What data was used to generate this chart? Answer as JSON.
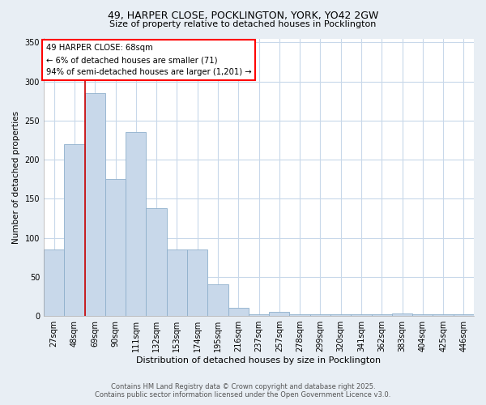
{
  "title_line1": "49, HARPER CLOSE, POCKLINGTON, YORK, YO42 2GW",
  "title_line2": "Size of property relative to detached houses in Pocklington",
  "xlabel": "Distribution of detached houses by size in Pocklington",
  "ylabel": "Number of detached properties",
  "bar_labels": [
    "27sqm",
    "48sqm",
    "69sqm",
    "90sqm",
    "111sqm",
    "132sqm",
    "153sqm",
    "174sqm",
    "195sqm",
    "216sqm",
    "237sqm",
    "257sqm",
    "278sqm",
    "299sqm",
    "320sqm",
    "341sqm",
    "362sqm",
    "383sqm",
    "404sqm",
    "425sqm",
    "446sqm"
  ],
  "bar_values": [
    85,
    220,
    285,
    175,
    235,
    138,
    85,
    85,
    40,
    10,
    2,
    5,
    2,
    2,
    2,
    2,
    2,
    3,
    2,
    2,
    2
  ],
  "bar_color": "#c8d8ea",
  "bar_edge_color": "#8fb0cc",
  "red_line_x": 1.5,
  "highlight_color": "#cc0000",
  "ylim": [
    0,
    355
  ],
  "yticks": [
    0,
    50,
    100,
    150,
    200,
    250,
    300,
    350
  ],
  "annotation_title": "49 HARPER CLOSE: 68sqm",
  "annotation_line2": "← 6% of detached houses are smaller (71)",
  "annotation_line3": "94% of semi-detached houses are larger (1,201) →",
  "footer_line1": "Contains HM Land Registry data © Crown copyright and database right 2025.",
  "footer_line2": "Contains public sector information licensed under the Open Government Licence v3.0.",
  "bg_color": "#e8eef4",
  "plot_bg_color": "#ffffff",
  "grid_color": "#c8d8ea"
}
